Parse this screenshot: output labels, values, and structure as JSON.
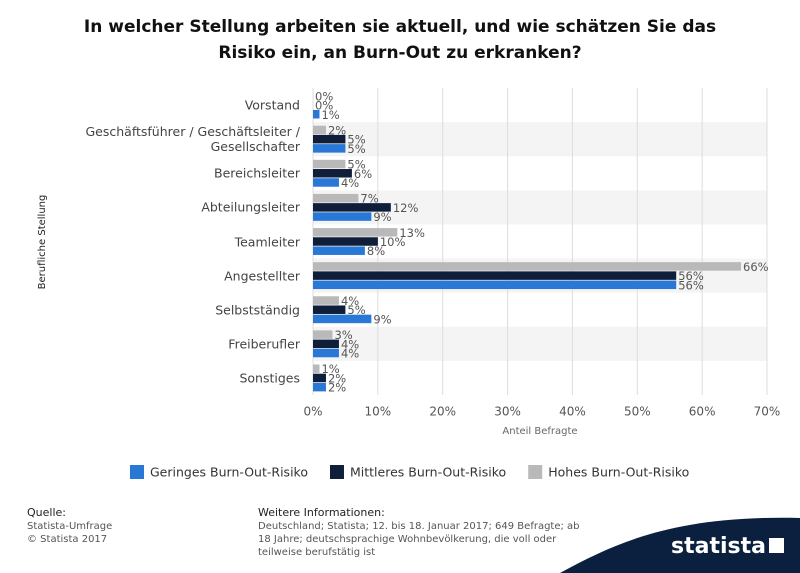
{
  "chart_data": {
    "type": "bar",
    "orientation": "horizontal",
    "title": "In welcher Stellung arbeiten sie aktuell, und wie schätzen Sie das Risiko ein, an Burn-Out zu erkranken?",
    "y_label": "Berufliche Stellung",
    "x_label": "Anteil Befragte",
    "categories": [
      "Vorstand",
      "Geschäftsführer / Geschäftsleiter / Gesellschafter",
      "Bereichsleiter",
      "Abteilungsleiter",
      "Teamleiter",
      "Angestellter",
      "Selbstständig",
      "Freiberufler",
      "Sonstiges"
    ],
    "series": [
      {
        "name": "Geringes Burn-Out-Risiko",
        "color": "#2a78d6",
        "values": [
          1,
          5,
          4,
          9,
          8,
          56,
          9,
          4,
          2
        ],
        "value_labels": [
          "1%",
          "5%",
          "4%",
          "9%",
          "8%",
          "56%",
          "9%",
          "4%",
          "2%"
        ]
      },
      {
        "name": "Mittleres Burn-Out-Risiko",
        "color": "#0f1f3a",
        "values": [
          0,
          5,
          6,
          12,
          10,
          56,
          5,
          4,
          2
        ],
        "value_labels": [
          "0%",
          "5%",
          "6%",
          "12%",
          "10%",
          "56%",
          "5%",
          "4%",
          "2%"
        ]
      },
      {
        "name": "Hohes Burn-Out-Risiko",
        "color": "#b9b9b9",
        "values": [
          0,
          2,
          5,
          7,
          13,
          66,
          4,
          3,
          1
        ],
        "value_labels": [
          "0%",
          "2%",
          "5%",
          "7%",
          "13%",
          "66%",
          "4%",
          "3%",
          "1%"
        ]
      }
    ],
    "xlim": [
      0,
      70
    ],
    "xticks": [
      {
        "value": 0,
        "label": "0%"
      },
      {
        "value": 10,
        "label": "10%"
      },
      {
        "value": 20,
        "label": "20%"
      },
      {
        "value": 30,
        "label": "30%"
      },
      {
        "value": 40,
        "label": "40%"
      },
      {
        "value": 50,
        "label": "50%"
      },
      {
        "value": 60,
        "label": "60%"
      },
      {
        "value": 70,
        "label": "70%"
      }
    ],
    "grid": true,
    "legend": "bottom"
  },
  "footer": {
    "source_title": "Quelle:",
    "source": "Statista-Umfrage",
    "copyright": "© Statista 2017",
    "info_title": "Weitere Informationen:",
    "info": "Deutschland; Statista; 12. bis 18. Januar 2017; 649 Befragte; ab 18 Jahre; deutschsprachige Wohnbevölkerung, die voll oder teilweise berufstätig ist",
    "logo": "statista"
  }
}
